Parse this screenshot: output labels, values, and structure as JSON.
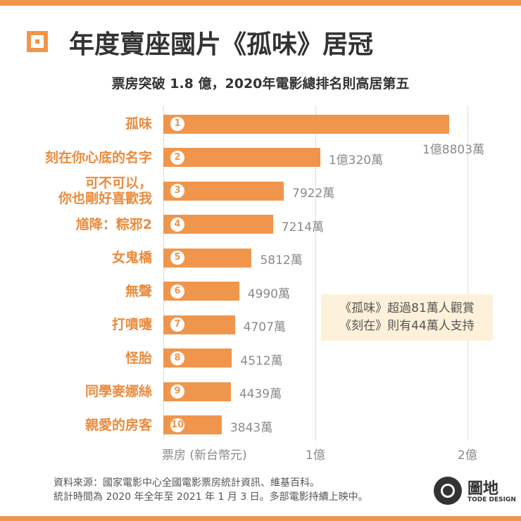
{
  "chart_data": {
    "type": "bar",
    "orientation": "horizontal",
    "title": "年度賣座國片《孤味》居冠",
    "subtitle": "票房突破 1.8 億，2020年電影總排名則高居第五",
    "categories": [
      "孤味",
      "刻在你心底的名字",
      "可不可以，\n你也剛好喜歡我",
      "馗降：粽邪2",
      "女鬼橋",
      "無聲",
      "打噴嚏",
      "怪胎",
      "同學麥娜絲",
      "親愛的房客"
    ],
    "ranks": [
      1,
      2,
      3,
      4,
      5,
      6,
      7,
      8,
      9,
      10
    ],
    "values": [
      18803,
      10320,
      7922,
      7214,
      5812,
      4990,
      4707,
      4512,
      4439,
      3843
    ],
    "value_labels": [
      "1億8803萬",
      "1億320萬",
      "7922萬",
      "7214萬",
      "5812萬",
      "4990萬",
      "4707萬",
      "4512萬",
      "4439萬",
      "3843萬"
    ],
    "color": "#f0964c",
    "xlim": [
      0,
      22000
    ],
    "xticks": [
      {
        "value": 0,
        "label": "票房 (新台幣元)"
      },
      {
        "value": 10000,
        "label": "1億"
      },
      {
        "value": 20000,
        "label": "2億"
      }
    ],
    "grid": true,
    "annotations": [
      "《孤味》超過81萬人觀賞",
      "《刻在》則有44萬人支持"
    ],
    "source": [
      "資料來源：國家電影中心全國電影票房統計資訊、維基百科。",
      "統計時間為 2020 年全年至 2021 年 1 月 3 日。多部電影持續上映中。"
    ],
    "brand": {
      "name": "圖地",
      "tagline": "TODE DESIGN"
    }
  }
}
